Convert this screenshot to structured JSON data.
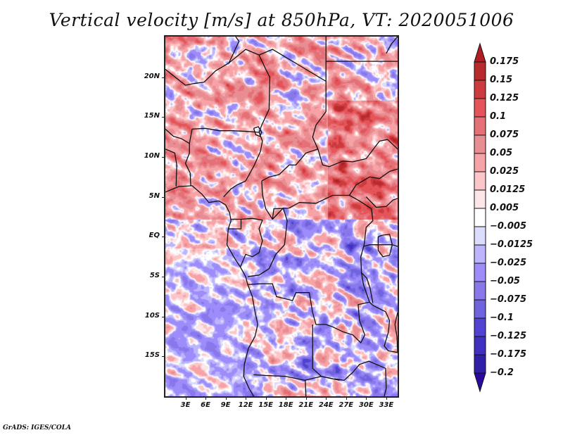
{
  "title": "Vertical velocity [m/s] at 850hPa, VT: 2020051006",
  "footer": "GrADS: IGES/COLA",
  "map": {
    "variable": "Vertical velocity",
    "units": "m/s",
    "level": "850hPa",
    "valid_time": "2020051006",
    "lon_range": [
      0,
      34.7
    ],
    "lat_range": [
      -20,
      25.1
    ],
    "lat_ticks": [
      {
        "value": 20,
        "label": "20N"
      },
      {
        "value": 15,
        "label": "15N"
      },
      {
        "value": 10,
        "label": "10N"
      },
      {
        "value": 5,
        "label": "5N"
      },
      {
        "value": 0,
        "label": "EQ"
      },
      {
        "value": -5,
        "label": "5S"
      },
      {
        "value": -10,
        "label": "10S"
      },
      {
        "value": -15,
        "label": "15S"
      }
    ],
    "lon_ticks": [
      {
        "value": 3,
        "label": "3E"
      },
      {
        "value": 6,
        "label": "6E"
      },
      {
        "value": 9,
        "label": "9E"
      },
      {
        "value": 12,
        "label": "12E"
      },
      {
        "value": 15,
        "label": "15E"
      },
      {
        "value": 18,
        "label": "18E"
      },
      {
        "value": 21,
        "label": "21E"
      },
      {
        "value": 24,
        "label": "24E"
      },
      {
        "value": 27,
        "label": "27E"
      },
      {
        "value": 30,
        "label": "30E"
      },
      {
        "value": 33,
        "label": "33E"
      }
    ]
  },
  "colorbar": {
    "levels": [
      0.175,
      0.15,
      0.125,
      0.1,
      0.075,
      0.05,
      0.025,
      0.0125,
      0.005,
      -0.005,
      -0.0125,
      -0.025,
      -0.05,
      -0.075,
      -0.1,
      -0.125,
      -0.175,
      -0.2
    ],
    "labels": [
      "0.175",
      "0.15",
      "0.125",
      "0.1",
      "0.075",
      "0.05",
      "0.025",
      "0.0125",
      "0.005",
      "−0.005",
      "−0.0125",
      "−0.025",
      "−0.05",
      "−0.075",
      "−0.1",
      "−0.125",
      "−0.175",
      "−0.2"
    ],
    "top_arrow_color": "#b01e24",
    "bottom_arrow_color": "#2a0a9e",
    "band_colors": [
      "#b82a2c",
      "#cc3b3e",
      "#e45458",
      "#e67077",
      "#e88d92",
      "#f6a2a6",
      "#fcc6c8",
      "#fde6e8",
      "#ffffff",
      "#dcdcfc",
      "#bcb4fc",
      "#9d8cfa",
      "#8878ec",
      "#7064de",
      "#5242d2",
      "#4030c0",
      "#3020a8"
    ]
  }
}
